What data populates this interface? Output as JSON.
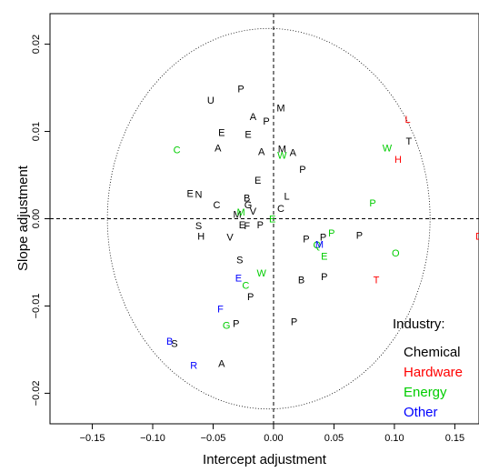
{
  "chart_data": {
    "type": "scatter",
    "title": "",
    "xlabel": "Intercept adjustment",
    "ylabel": "Slope adjustment",
    "xlim": [
      -0.185,
      0.17
    ],
    "ylim": [
      -0.0235,
      0.0235
    ],
    "xticks": [
      -0.15,
      -0.1,
      -0.05,
      0.0,
      0.05,
      0.1,
      0.15
    ],
    "xtick_labels": [
      "−0.15",
      "−0.10",
      "−0.05",
      "0.00",
      "0.05",
      "0.10",
      "0.15"
    ],
    "yticks": [
      -0.02,
      -0.01,
      0.0,
      0.01,
      0.02
    ],
    "ytick_labels": [
      "−0.02",
      "−0.01",
      "0.00",
      "0.01",
      "0.02"
    ],
    "reference_lines": {
      "x": 0.0,
      "y": 0.0,
      "style": "dashed"
    },
    "ellipse": {
      "center": [
        -0.004,
        0.0
      ],
      "semi_axes": [
        0.1335,
        0.0218
      ],
      "style": "dotted"
    },
    "grid": false,
    "legend": {
      "title": "Industry:",
      "position": "bottom-right",
      "entries": [
        {
          "name": "Chemical",
          "color": "#000000"
        },
        {
          "name": "Hardware",
          "color": "#ff0000"
        },
        {
          "name": "Energy",
          "color": "#00cd00"
        },
        {
          "name": "Other",
          "color": "#0000ff"
        }
      ]
    },
    "series": [
      {
        "name": "Chemical",
        "color": "#000000",
        "points": [
          {
            "label": "P",
            "x": -0.027,
            "y": 0.0148
          },
          {
            "label": "U",
            "x": -0.052,
            "y": 0.0135
          },
          {
            "label": "M",
            "x": 0.006,
            "y": 0.0126
          },
          {
            "label": "A",
            "x": -0.017,
            "y": 0.0116
          },
          {
            "label": "P",
            "x": -0.006,
            "y": 0.0111
          },
          {
            "label": "E",
            "x": -0.043,
            "y": 0.0098
          },
          {
            "label": "E",
            "x": -0.021,
            "y": 0.0096
          },
          {
            "label": "A",
            "x": -0.046,
            "y": 0.008
          },
          {
            "label": "A",
            "x": -0.01,
            "y": 0.0076
          },
          {
            "label": "M",
            "x": 0.007,
            "y": 0.0079
          },
          {
            "label": "A",
            "x": 0.016,
            "y": 0.0075
          },
          {
            "label": "T",
            "x": 0.112,
            "y": 0.0088
          },
          {
            "label": "P",
            "x": 0.024,
            "y": 0.0056
          },
          {
            "label": "E",
            "x": -0.013,
            "y": 0.0043
          },
          {
            "label": "E",
            "x": -0.069,
            "y": 0.0028
          },
          {
            "label": "N",
            "x": -0.062,
            "y": 0.0027
          },
          {
            "label": "L",
            "x": 0.011,
            "y": 0.0025
          },
          {
            "label": "B",
            "x": -0.022,
            "y": 0.0023
          },
          {
            "label": "C",
            "x": -0.047,
            "y": 0.0015
          },
          {
            "label": "G",
            "x": -0.021,
            "y": 0.0015
          },
          {
            "label": "C",
            "x": 0.006,
            "y": 0.0011
          },
          {
            "label": "V",
            "x": -0.017,
            "y": 0.0008
          },
          {
            "label": "M",
            "x": -0.03,
            "y": 0.0004
          },
          {
            "label": "S",
            "x": -0.062,
            "y": -0.0009
          },
          {
            "label": "E",
            "x": -0.026,
            "y": -0.0008
          },
          {
            "label": "F",
            "x": -0.022,
            "y": -0.0009
          },
          {
            "label": "P",
            "x": -0.011,
            "y": -0.0008
          },
          {
            "label": "H",
            "x": -0.06,
            "y": -0.0021
          },
          {
            "label": "V",
            "x": -0.036,
            "y": -0.0022
          },
          {
            "label": "P",
            "x": 0.027,
            "y": -0.0024
          },
          {
            "label": "P",
            "x": 0.041,
            "y": -0.0022
          },
          {
            "label": "P",
            "x": 0.071,
            "y": -0.002
          },
          {
            "label": "S",
            "x": -0.028,
            "y": -0.0048
          },
          {
            "label": "B",
            "x": 0.023,
            "y": -0.0071
          },
          {
            "label": "P",
            "x": 0.042,
            "y": -0.0067
          },
          {
            "label": "P",
            "x": -0.019,
            "y": -0.009
          },
          {
            "label": "P",
            "x": 0.017,
            "y": -0.0119
          },
          {
            "label": "P",
            "x": -0.031,
            "y": -0.0121
          },
          {
            "label": "S",
            "x": -0.082,
            "y": -0.0144
          },
          {
            "label": "A",
            "x": -0.043,
            "y": -0.0167
          }
        ]
      },
      {
        "name": "Hardware",
        "color": "#ff0000",
        "points": [
          {
            "label": "L",
            "x": 0.111,
            "y": 0.0113
          },
          {
            "label": "H",
            "x": 0.103,
            "y": 0.0067
          },
          {
            "label": "D",
            "x": 0.17,
            "y": -0.0021
          },
          {
            "label": "T",
            "x": 0.085,
            "y": -0.0071
          }
        ]
      },
      {
        "name": "Energy",
        "color": "#00cd00",
        "points": [
          {
            "label": "C",
            "x": -0.08,
            "y": 0.0078
          },
          {
            "label": "W",
            "x": 0.007,
            "y": 0.0072
          },
          {
            "label": "W",
            "x": 0.094,
            "y": 0.008
          },
          {
            "label": "P",
            "x": 0.082,
            "y": 0.0017
          },
          {
            "label": "M",
            "x": -0.027,
            "y": 0.0007
          },
          {
            "label": "E",
            "x": -0.001,
            "y": -0.0001
          },
          {
            "label": "P",
            "x": 0.048,
            "y": -0.0017
          },
          {
            "label": "Q",
            "x": 0.036,
            "y": -0.0031
          },
          {
            "label": "E",
            "x": 0.042,
            "y": -0.0044
          },
          {
            "label": "O",
            "x": 0.101,
            "y": -0.004
          },
          {
            "label": "W",
            "x": -0.01,
            "y": -0.0063
          },
          {
            "label": "C",
            "x": -0.023,
            "y": -0.0077
          },
          {
            "label": "G",
            "x": -0.039,
            "y": -0.0123
          }
        ]
      },
      {
        "name": "Other",
        "color": "#0000ff",
        "points": [
          {
            "label": "M",
            "x": 0.038,
            "y": -0.003
          },
          {
            "label": "E",
            "x": -0.029,
            "y": -0.0069
          },
          {
            "label": "F",
            "x": -0.044,
            "y": -0.0104
          },
          {
            "label": "B",
            "x": -0.086,
            "y": -0.0141
          },
          {
            "label": "R",
            "x": -0.066,
            "y": -0.0169
          }
        ]
      }
    ]
  }
}
